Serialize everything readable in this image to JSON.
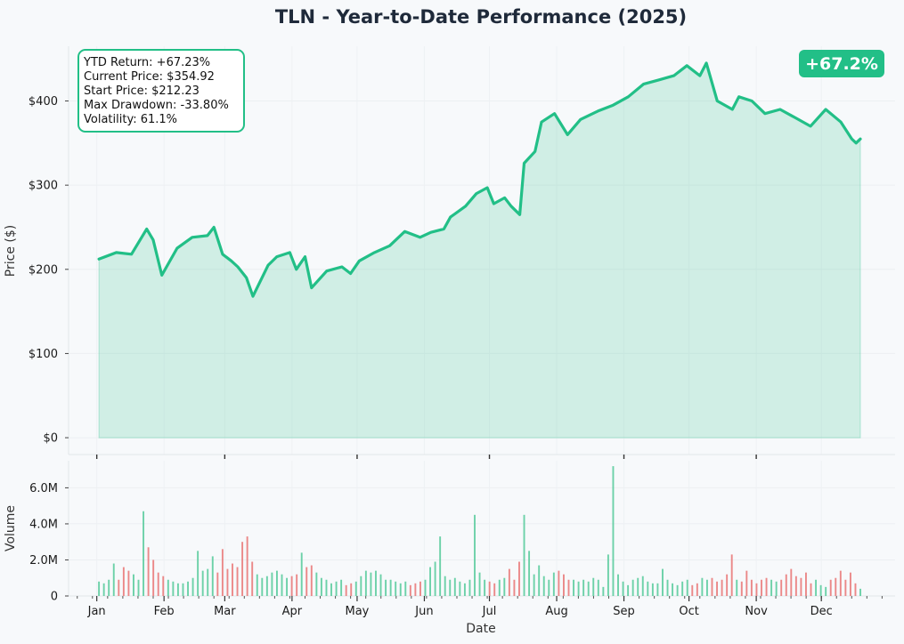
{
  "chart_data": [
    {
      "type": "line",
      "title": "TLN - Year-to-Date Performance (2025)",
      "ylabel": "Price ($)",
      "xlabel": "",
      "ylim": [
        -20,
        465
      ],
      "y_ticks": [
        0,
        100,
        200,
        300,
        400
      ],
      "y_tick_labels": [
        "$0",
        "$100",
        "$200",
        "$300",
        "$400"
      ],
      "grid": true,
      "area_fill": true,
      "line_color": "#22bf87",
      "fill_color": "#22bf87",
      "x": [
        "2025-01-02",
        "2025-01-10",
        "2025-01-17",
        "2025-01-24",
        "2025-01-27",
        "2025-01-31",
        "2025-02-07",
        "2025-02-14",
        "2025-02-21",
        "2025-02-24",
        "2025-02-28",
        "2025-03-04",
        "2025-03-07",
        "2025-03-11",
        "2025-03-14",
        "2025-03-21",
        "2025-03-25",
        "2025-03-31",
        "2025-04-03",
        "2025-04-07",
        "2025-04-10",
        "2025-04-17",
        "2025-04-24",
        "2025-04-28",
        "2025-05-02",
        "2025-05-09",
        "2025-05-16",
        "2025-05-23",
        "2025-05-30",
        "2025-06-04",
        "2025-06-10",
        "2025-06-13",
        "2025-06-20",
        "2025-06-25",
        "2025-06-30",
        "2025-07-03",
        "2025-07-08",
        "2025-07-11",
        "2025-07-15",
        "2025-07-17",
        "2025-07-22",
        "2025-07-25",
        "2025-07-31",
        "2025-08-06",
        "2025-08-12",
        "2025-08-20",
        "2025-08-27",
        "2025-09-03",
        "2025-09-10",
        "2025-09-17",
        "2025-09-24",
        "2025-09-30",
        "2025-10-06",
        "2025-10-09",
        "2025-10-14",
        "2025-10-21",
        "2025-10-24",
        "2025-10-30",
        "2025-11-05",
        "2025-11-12",
        "2025-11-19",
        "2025-11-26",
        "2025-12-03",
        "2025-12-10",
        "2025-12-15",
        "2025-12-17",
        "2025-12-19"
      ],
      "values": [
        212.23,
        220,
        218,
        248,
        235,
        193,
        225,
        238,
        240,
        250,
        218,
        210,
        203,
        190,
        168,
        205,
        215,
        220,
        200,
        215,
        178,
        198,
        203,
        195,
        210,
        220,
        228,
        245,
        238,
        244,
        248,
        262,
        275,
        290,
        297,
        278,
        285,
        275,
        265,
        326,
        340,
        375,
        385,
        360,
        378,
        388,
        395,
        405,
        420,
        425,
        430,
        442,
        430,
        445,
        400,
        390,
        405,
        400,
        385,
        390,
        380,
        370,
        390,
        375,
        355,
        350,
        354.92
      ]
    },
    {
      "type": "bar",
      "xlabel": "Date",
      "ylabel": "Volume",
      "ylim": [
        0,
        7.5
      ],
      "y_ticks": [
        0,
        2,
        4,
        6
      ],
      "y_tick_labels": [
        "0",
        "2.0M",
        "4.0M",
        "6.0M"
      ],
      "x_ticks": [
        "Jan",
        "Feb",
        "Mar",
        "Apr",
        "May",
        "Jun",
        "Jul",
        "Aug",
        "Sep",
        "Oct",
        "Nov",
        "Dec"
      ],
      "up_color": "#5ccc9f",
      "down_color": "#e97b7b",
      "series": [
        {
          "name": "",
          "values_millions": [
            0.8,
            0.7,
            0.9,
            1.8,
            0.9,
            1.6,
            1.4,
            1.2,
            0.9,
            4.7,
            2.7,
            2.0,
            1.3,
            1.1,
            0.9,
            0.8,
            0.7,
            0.7,
            0.8,
            1.0,
            2.5,
            1.4,
            1.5,
            2.2,
            1.3,
            2.6,
            1.5,
            1.8,
            1.6,
            3.0,
            3.3,
            1.9,
            1.2,
            1.0,
            1.1,
            1.3,
            1.4,
            1.2,
            1.0,
            1.1,
            1.2,
            2.4,
            1.6,
            1.7,
            1.3,
            1.0,
            0.9,
            0.7,
            0.8,
            0.9,
            0.6,
            0.7,
            0.8,
            1.1,
            1.4,
            1.3,
            1.4,
            1.2,
            0.9,
            0.9,
            0.8,
            0.7,
            0.8,
            0.6,
            0.7,
            0.8,
            0.9,
            1.6,
            1.9,
            3.3,
            1.1,
            0.9,
            1.0,
            0.8,
            0.7,
            0.9,
            4.5,
            1.3,
            0.9,
            0.8,
            0.7,
            0.9,
            1.0,
            1.5,
            0.9,
            1.9,
            4.5,
            2.5,
            1.2,
            1.7,
            1.1,
            0.9,
            1.3,
            1.4,
            1.2,
            0.9,
            0.9,
            0.8,
            0.9,
            0.8,
            1.0,
            0.9,
            0.5,
            2.3,
            7.2,
            1.2,
            0.8,
            0.6,
            0.9,
            1.0,
            1.1,
            0.8,
            0.7,
            0.7,
            1.5,
            0.9,
            0.7,
            0.6,
            0.8,
            0.9,
            0.6,
            0.7,
            1.0,
            0.9,
            1.0,
            0.8,
            0.9,
            1.2,
            2.3,
            0.9,
            0.8,
            1.4,
            0.9,
            0.7,
            0.9,
            1.0,
            0.9,
            0.8,
            0.9,
            1.2,
            1.5,
            1.1,
            1.0,
            1.3,
            0.7,
            0.9,
            0.6,
            0.5,
            0.9,
            1.0,
            1.4,
            0.9,
            1.3,
            0.7,
            0.4
          ]
        }
      ]
    }
  ],
  "stats_box": {
    "lines": [
      "YTD Return: +67.23%",
      "Current Price: $354.92",
      "Start Price: $212.23",
      "Max Drawdown: -33.80%",
      "Volatility: 61.1%"
    ]
  },
  "badge": {
    "text": "+67.2%",
    "color": "#22bf87"
  }
}
